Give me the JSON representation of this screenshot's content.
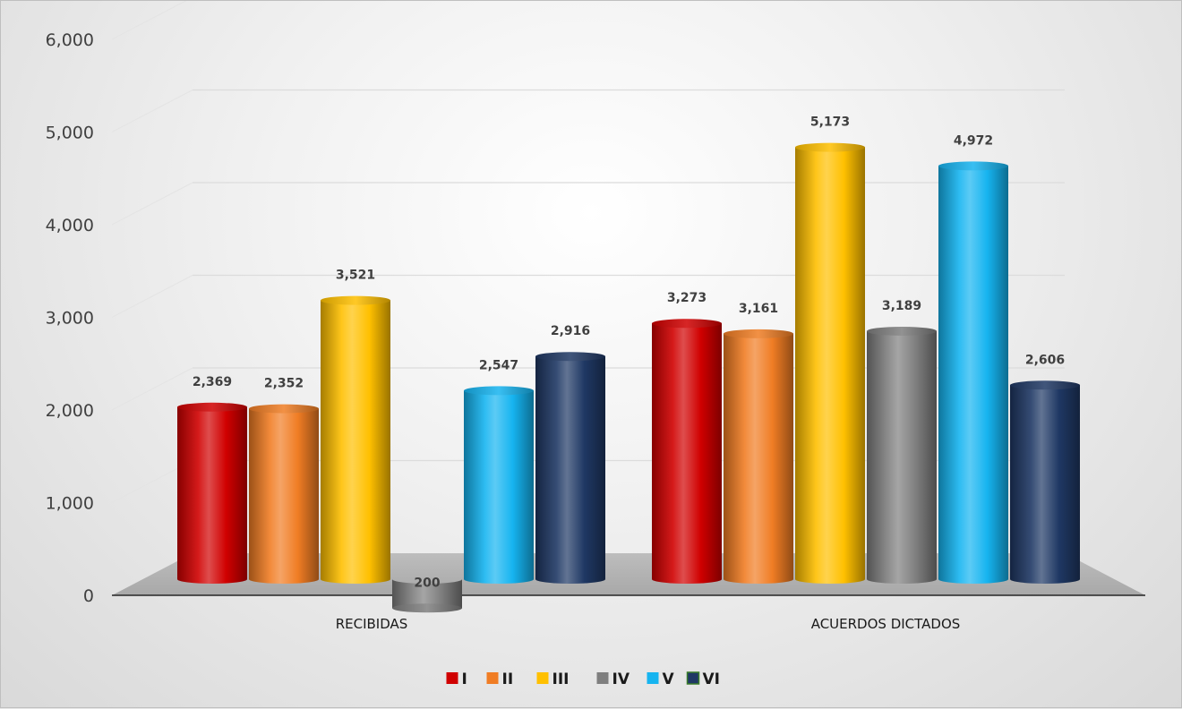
{
  "chart_data": {
    "type": "bar",
    "categories": [
      "RECIBIDAS",
      "ACUERDOS DICTADOS"
    ],
    "series": [
      {
        "name": "I",
        "values": [
          2369,
          3273
        ],
        "color": "#d00000"
      },
      {
        "name": "II",
        "values": [
          2352,
          3161
        ],
        "color": "#f07d24"
      },
      {
        "name": "III",
        "values": [
          3521,
          5173
        ],
        "color": "#ffc000"
      },
      {
        "name": "IV",
        "values": [
          200,
          3189
        ],
        "color": "#7f7f7f"
      },
      {
        "name": "V",
        "values": [
          2547,
          4972
        ],
        "color": "#16b4f0"
      },
      {
        "name": "VI",
        "values": [
          2916,
          2606
        ],
        "color": "#1f3864"
      }
    ],
    "data_labels": [
      [
        "2,369",
        "3,273"
      ],
      [
        "2,352",
        "3,161"
      ],
      [
        "3,521",
        "5,173"
      ],
      [
        "200",
        "3,189"
      ],
      [
        "2,547",
        "4,972"
      ],
      [
        "2,916",
        "2,606"
      ]
    ],
    "yticks": [
      "0",
      "1,000",
      "2,000",
      "3,000",
      "4,000",
      "5,000",
      "6,000"
    ],
    "ylim": [
      0,
      6000
    ],
    "title": "",
    "xlabel": "",
    "ylabel": "",
    "grid": true,
    "legend_position": "bottom",
    "style": "3d-cylinder"
  }
}
